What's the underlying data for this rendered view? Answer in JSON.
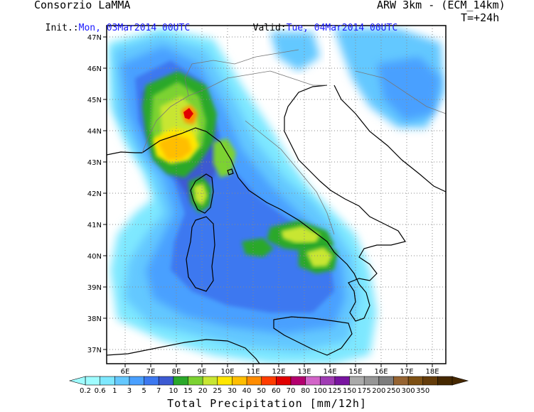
{
  "header": {
    "org": "Consorzio LaMMA",
    "model": "ARW 3km - (ECM_14km)",
    "init_label": "Init.:",
    "init_value": "Mon, 03Mar2014 00UTC",
    "valid_label": "Valid:",
    "valid_value": "Tue, 04Mar2014 00UTC",
    "lead": "T=+24h"
  },
  "map": {
    "lat_ticks": [
      "37N",
      "38N",
      "39N",
      "40N",
      "41N",
      "42N",
      "43N",
      "44N",
      "45N",
      "46N",
      "47N"
    ],
    "lon_ticks": [
      "6E",
      "7E",
      "8E",
      "9E",
      "10E",
      "11E",
      "12E",
      "13E",
      "14E",
      "15E",
      "16E",
      "17E",
      "18E"
    ]
  },
  "colorbar": {
    "title": "Total Precipitation [mm/12h]",
    "levels": [
      "0.2",
      "0.6",
      "1",
      "3",
      "5",
      "7",
      "10",
      "15",
      "20",
      "25",
      "30",
      "40",
      "50",
      "60",
      "70",
      "80",
      "100",
      "125",
      "150",
      "175",
      "200",
      "250",
      "300",
      "350"
    ],
    "colors": [
      "#9ffcff",
      "#7ee8ff",
      "#64c8ff",
      "#4aa0ff",
      "#3c78f0",
      "#3c5ad2",
      "#2aa82a",
      "#7cd232",
      "#c8e632",
      "#ffe600",
      "#ffbe00",
      "#ff8c00",
      "#ff3c00",
      "#e10000",
      "#b4006e",
      "#d264c8",
      "#a03cb4",
      "#7814a0",
      "#aaaaaa",
      "#969696",
      "#7d7d7d",
      "#966432",
      "#7d5014",
      "#643c0a",
      "#462800"
    ]
  }
}
